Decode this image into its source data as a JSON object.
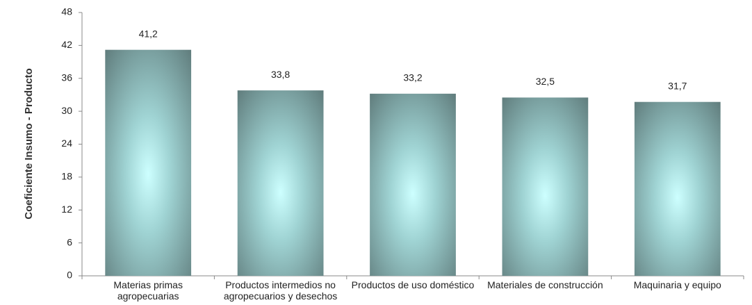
{
  "chart_data": {
    "type": "bar",
    "y_label": "Coeficiente Insumo  - Producto",
    "categories": [
      "Materias primas agropecuarias",
      "Productos intermedios no agropecuarios y desechos",
      "Productos de uso doméstico",
      "Materiales de construcción",
      "Maquinaria y equipo"
    ],
    "values": [
      41.2,
      33.8,
      33.2,
      32.5,
      31.7
    ],
    "value_labels": [
      "41,2",
      "33,8",
      "33,2",
      "32,5",
      "31,7"
    ],
    "color": "#5f7b7b",
    "ylim": [
      0,
      48
    ],
    "yticks": [
      0,
      6,
      12,
      18,
      24,
      30,
      36,
      42,
      48
    ],
    "grid": false
  }
}
